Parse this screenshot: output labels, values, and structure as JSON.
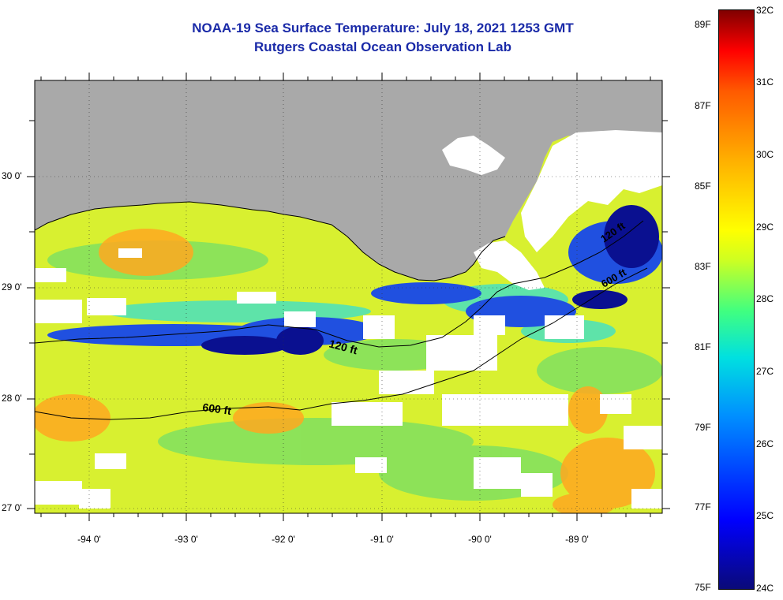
{
  "title_line1": "NOAA-19 Sea Surface Temperature:  July 18, 2021 1253 GMT",
  "title_line2": "Rutgers Coastal Ocean Observation Lab",
  "lat_labels": [
    "30 0'",
    "29 0'",
    "28 0'",
    "27 0'"
  ],
  "lon_labels": [
    "-94 0'",
    "-93 0'",
    "-92 0'",
    "-91 0'",
    "-90 0'",
    "-89 0'"
  ],
  "contour_labels": {
    "c120_west": "120 ft",
    "c600": "600 ft",
    "c120_east": "120 ft",
    "c600_east": "600 ft"
  },
  "colorbar": {
    "fahrenheit": [
      "89F",
      "87F",
      "85F",
      "83F",
      "81F",
      "79F",
      "77F",
      "75F"
    ],
    "celsius": [
      "32C",
      "31C",
      "30C",
      "29C",
      "28C",
      "27C",
      "26C",
      "25C",
      "24C"
    ]
  },
  "colors": {
    "land": "#a9a9a9",
    "cloud": "#ffffff",
    "warm": "#ffa500",
    "cool": "#1028c8",
    "title": "#1a2aa8"
  }
}
